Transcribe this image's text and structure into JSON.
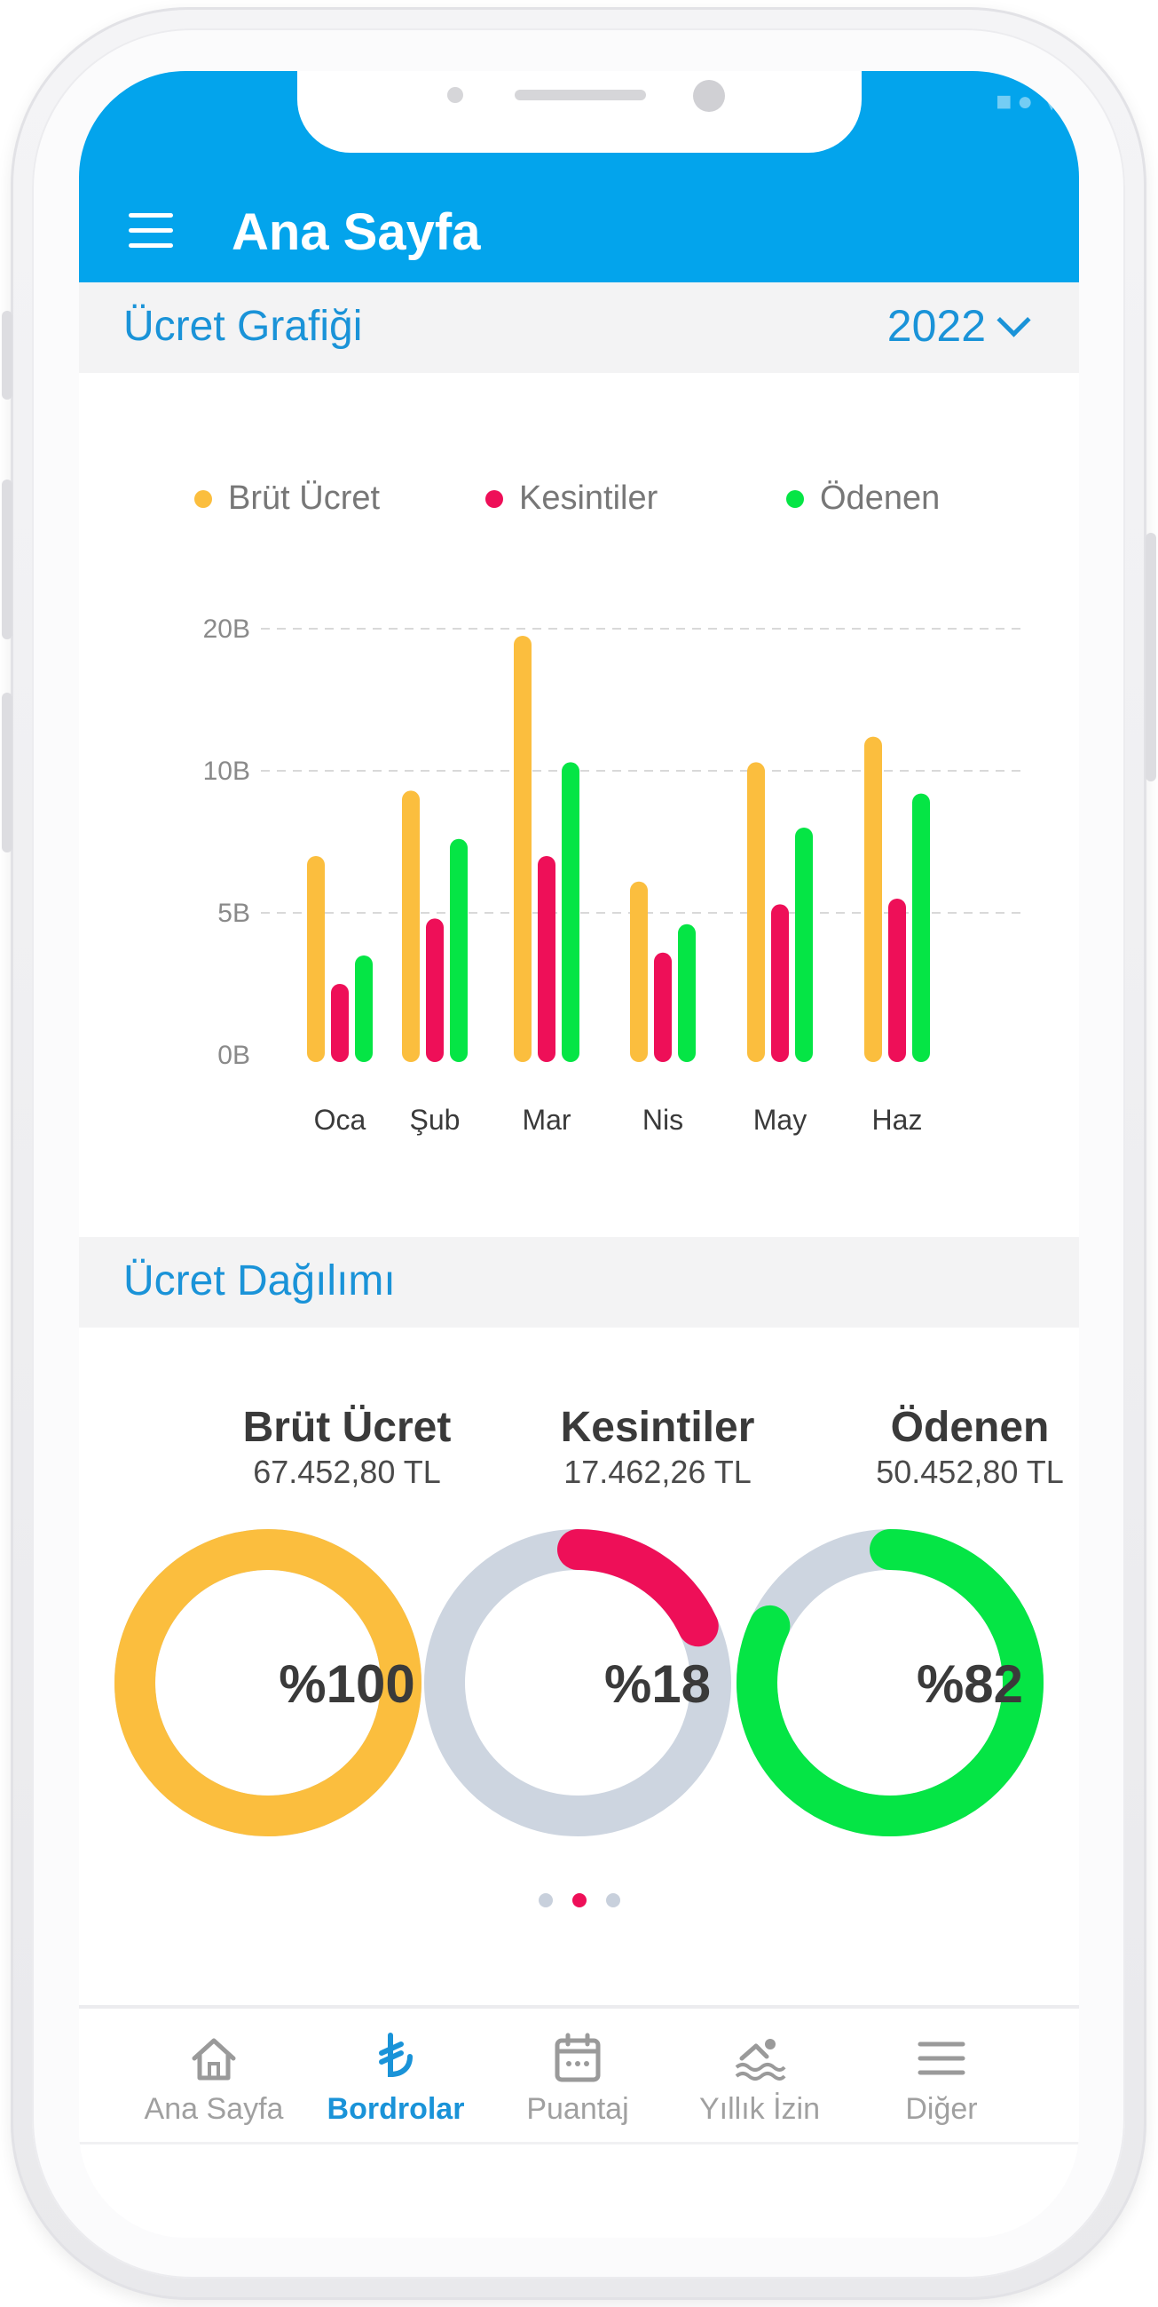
{
  "header": {
    "title": "Ana Sayfa"
  },
  "salary_chart_section": {
    "title": "Ücret Grafiği",
    "year": "2022"
  },
  "distribution_section": {
    "title": "Ücret Dağılımı"
  },
  "colors": {
    "gross": "#fbbe3e",
    "deductions": "#ee0f58",
    "paid": "#05e545",
    "primary": "#03a4ec",
    "track": "#cdd5e0"
  },
  "chart_data": {
    "type": "bar",
    "categories": [
      "Oca",
      "Şub",
      "Mar",
      "Nis",
      "May",
      "Haz"
    ],
    "series": [
      {
        "name": "Brüt Ücret",
        "values": [
          7.0,
          9.3,
          19.5,
          6.1,
          10.6,
          12.4
        ]
      },
      {
        "name": "Kesintiler",
        "values": [
          2.5,
          4.8,
          7.0,
          3.6,
          5.3,
          5.5
        ]
      },
      {
        "name": "Ödenen",
        "values": [
          3.5,
          7.6,
          10.6,
          4.6,
          8.0,
          9.2
        ]
      }
    ],
    "yticks": [
      "0B",
      "5B",
      "10B",
      "20B"
    ],
    "ylim": [
      0,
      20
    ],
    "grid": true,
    "legend": "top"
  },
  "distribution": [
    {
      "name": "Brüt Ücret",
      "amount": "67.452,80 TL",
      "percent_label": "%100",
      "percent": 100
    },
    {
      "name": "Kesintiler",
      "amount": "17.462,26 TL",
      "percent_label": "%18",
      "percent": 18
    },
    {
      "name": "Ödenen",
      "amount": "50.452,80 TL",
      "percent_label": "%82",
      "percent": 82
    }
  ],
  "pager": {
    "count": 3,
    "active": 1
  },
  "bottom_nav": [
    {
      "label": "Ana Sayfa",
      "icon": "home-icon"
    },
    {
      "label": "Bordrolar",
      "icon": "lira-icon",
      "active": true
    },
    {
      "label": "Puantaj",
      "icon": "calendar-icon"
    },
    {
      "label": "Yıllık İzin",
      "icon": "swimmer-icon"
    },
    {
      "label": "Diğer",
      "icon": "menu-icon"
    }
  ]
}
